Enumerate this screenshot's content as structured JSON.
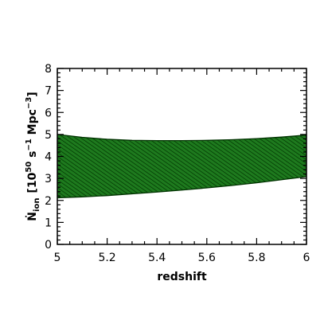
{
  "chart_data": {
    "type": "area",
    "title": "",
    "xlabel": "redshift",
    "ylabel": {
      "symbol": "Ṅ",
      "subscript": "ion",
      "open": "[10",
      "exp1": "50",
      "mid": " s",
      "exp2": "−1",
      "unit": " Mpc",
      "exp3": "−3",
      "close": "]"
    },
    "xlim": [
      5,
      6
    ],
    "ylim": [
      0,
      8
    ],
    "xticks": [
      "5",
      "5.2",
      "5.4",
      "5.6",
      "5.8",
      "6"
    ],
    "yticks": [
      "0",
      "1",
      "2",
      "3",
      "4",
      "5",
      "6",
      "7",
      "8"
    ],
    "grid": false,
    "series": [
      {
        "fill_color": "#006400",
        "hatch": true,
        "x": [
          5.0,
          5.1,
          5.2,
          5.3,
          5.4,
          5.5,
          5.6,
          5.7,
          5.8,
          5.9,
          6.0
        ],
        "upper": [
          5.0,
          4.87,
          4.78,
          4.73,
          4.72,
          4.72,
          4.73,
          4.76,
          4.81,
          4.88,
          4.97
        ],
        "lower": [
          2.12,
          2.16,
          2.22,
          2.3,
          2.38,
          2.47,
          2.57,
          2.68,
          2.8,
          2.94,
          3.08
        ]
      }
    ]
  }
}
